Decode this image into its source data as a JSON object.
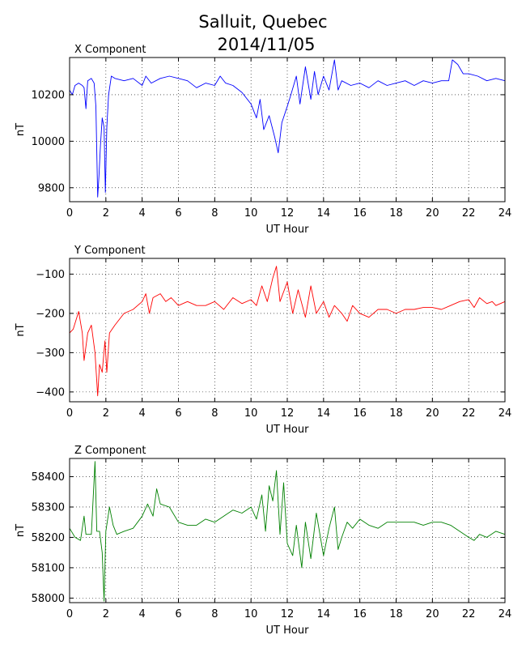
{
  "title_line1": "Salluit, Quebec",
  "title_line2": "2014/11/05",
  "chart_data": [
    {
      "type": "line",
      "title": "X Component",
      "xlabel": "UT Hour",
      "ylabel": "nT",
      "xlim": [
        0,
        24
      ],
      "ylim": [
        9740,
        10360
      ],
      "xticks": [
        0,
        2,
        4,
        6,
        8,
        10,
        12,
        14,
        16,
        18,
        20,
        22,
        24
      ],
      "yticks": [
        9800,
        10000,
        10200
      ],
      "grid": true,
      "color": "#0000ff",
      "series": [
        {
          "values": [
            [
              0,
              10220
            ],
            [
              0.15,
              10200
            ],
            [
              0.3,
              10240
            ],
            [
              0.5,
              10250
            ],
            [
              0.7,
              10240
            ],
            [
              0.8,
              10230
            ],
            [
              0.9,
              10140
            ],
            [
              1.0,
              10260
            ],
            [
              1.2,
              10270
            ],
            [
              1.35,
              10250
            ],
            [
              1.45,
              10150
            ],
            [
              1.55,
              9760
            ],
            [
              1.62,
              9850
            ],
            [
              1.7,
              9980
            ],
            [
              1.8,
              10100
            ],
            [
              1.9,
              10060
            ],
            [
              1.97,
              9780
            ],
            [
              2.05,
              10060
            ],
            [
              2.15,
              10200
            ],
            [
              2.3,
              10280
            ],
            [
              2.5,
              10270
            ],
            [
              3.0,
              10260
            ],
            [
              3.5,
              10270
            ],
            [
              4.0,
              10240
            ],
            [
              4.2,
              10280
            ],
            [
              4.5,
              10250
            ],
            [
              5.0,
              10270
            ],
            [
              5.5,
              10280
            ],
            [
              6.0,
              10270
            ],
            [
              6.5,
              10260
            ],
            [
              7.0,
              10230
            ],
            [
              7.5,
              10250
            ],
            [
              8.0,
              10240
            ],
            [
              8.3,
              10280
            ],
            [
              8.6,
              10250
            ],
            [
              9.0,
              10240
            ],
            [
              9.5,
              10210
            ],
            [
              10.0,
              10160
            ],
            [
              10.3,
              10100
            ],
            [
              10.5,
              10180
            ],
            [
              10.7,
              10050
            ],
            [
              11.0,
              10110
            ],
            [
              11.3,
              10020
            ],
            [
              11.5,
              9950
            ],
            [
              11.7,
              10080
            ],
            [
              12.0,
              10150
            ],
            [
              12.2,
              10200
            ],
            [
              12.5,
              10280
            ],
            [
              12.7,
              10160
            ],
            [
              13.0,
              10320
            ],
            [
              13.3,
              10180
            ],
            [
              13.5,
              10300
            ],
            [
              13.7,
              10200
            ],
            [
              14.0,
              10280
            ],
            [
              14.3,
              10220
            ],
            [
              14.6,
              10350
            ],
            [
              14.8,
              10220
            ],
            [
              15.0,
              10260
            ],
            [
              15.5,
              10240
            ],
            [
              16.0,
              10250
            ],
            [
              16.5,
              10230
            ],
            [
              17.0,
              10260
            ],
            [
              17.5,
              10240
            ],
            [
              18.0,
              10250
            ],
            [
              18.5,
              10260
            ],
            [
              19.0,
              10240
            ],
            [
              19.5,
              10260
            ],
            [
              20.0,
              10250
            ],
            [
              20.5,
              10260
            ],
            [
              20.9,
              10260
            ],
            [
              21.1,
              10350
            ],
            [
              21.4,
              10330
            ],
            [
              21.7,
              10290
            ],
            [
              22.0,
              10290
            ],
            [
              22.5,
              10280
            ],
            [
              23.0,
              10260
            ],
            [
              23.5,
              10270
            ],
            [
              24.0,
              10260
            ]
          ]
        }
      ]
    },
    {
      "type": "line",
      "title": "Y Component",
      "xlabel": "UT Hour",
      "ylabel": "nT",
      "xlim": [
        0,
        24
      ],
      "ylim": [
        -425,
        -60
      ],
      "xticks": [
        0,
        2,
        4,
        6,
        8,
        10,
        12,
        14,
        16,
        18,
        20,
        22,
        24
      ],
      "yticks": [
        -400,
        -300,
        -200,
        -100
      ],
      "grid": true,
      "color": "#ff0000",
      "series": [
        {
          "values": [
            [
              0,
              -250
            ],
            [
              0.2,
              -240
            ],
            [
              0.4,
              -210
            ],
            [
              0.5,
              -195
            ],
            [
              0.7,
              -250
            ],
            [
              0.8,
              -320
            ],
            [
              1.0,
              -250
            ],
            [
              1.2,
              -230
            ],
            [
              1.4,
              -300
            ],
            [
              1.55,
              -410
            ],
            [
              1.65,
              -330
            ],
            [
              1.8,
              -350
            ],
            [
              1.95,
              -270
            ],
            [
              2.05,
              -350
            ],
            [
              2.2,
              -250
            ],
            [
              2.5,
              -230
            ],
            [
              3.0,
              -200
            ],
            [
              3.5,
              -190
            ],
            [
              4.0,
              -170
            ],
            [
              4.2,
              -150
            ],
            [
              4.4,
              -200
            ],
            [
              4.6,
              -160
            ],
            [
              5.0,
              -150
            ],
            [
              5.3,
              -170
            ],
            [
              5.6,
              -160
            ],
            [
              6.0,
              -180
            ],
            [
              6.5,
              -170
            ],
            [
              7.0,
              -180
            ],
            [
              7.5,
              -180
            ],
            [
              8.0,
              -170
            ],
            [
              8.5,
              -190
            ],
            [
              9.0,
              -160
            ],
            [
              9.5,
              -175
            ],
            [
              10.0,
              -165
            ],
            [
              10.3,
              -180
            ],
            [
              10.6,
              -130
            ],
            [
              10.9,
              -170
            ],
            [
              11.2,
              -110
            ],
            [
              11.4,
              -80
            ],
            [
              11.6,
              -170
            ],
            [
              12.0,
              -120
            ],
            [
              12.3,
              -200
            ],
            [
              12.6,
              -140
            ],
            [
              13.0,
              -210
            ],
            [
              13.3,
              -130
            ],
            [
              13.6,
              -200
            ],
            [
              14.0,
              -170
            ],
            [
              14.3,
              -210
            ],
            [
              14.6,
              -180
            ],
            [
              15.0,
              -200
            ],
            [
              15.3,
              -220
            ],
            [
              15.6,
              -180
            ],
            [
              16.0,
              -200
            ],
            [
              16.5,
              -210
            ],
            [
              17.0,
              -190
            ],
            [
              17.5,
              -190
            ],
            [
              18.0,
              -200
            ],
            [
              18.5,
              -190
            ],
            [
              19.0,
              -190
            ],
            [
              19.5,
              -185
            ],
            [
              20.0,
              -185
            ],
            [
              20.5,
              -190
            ],
            [
              21.0,
              -180
            ],
            [
              21.5,
              -170
            ],
            [
              22.0,
              -165
            ],
            [
              22.3,
              -185
            ],
            [
              22.6,
              -160
            ],
            [
              23.0,
              -175
            ],
            [
              23.3,
              -170
            ],
            [
              23.5,
              -180
            ],
            [
              24.0,
              -170
            ]
          ]
        }
      ]
    },
    {
      "type": "line",
      "title": "Z Component",
      "xlabel": "UT Hour",
      "ylabel": "nT",
      "xlim": [
        0,
        24
      ],
      "ylim": [
        57985,
        58460
      ],
      "xticks": [
        0,
        2,
        4,
        6,
        8,
        10,
        12,
        14,
        16,
        18,
        20,
        22,
        24
      ],
      "yticks": [
        58000,
        58100,
        58200,
        58300,
        58400
      ],
      "grid": true,
      "color": "#008000",
      "series": [
        {
          "values": [
            [
              0,
              58230
            ],
            [
              0.3,
              58200
            ],
            [
              0.6,
              58190
            ],
            [
              0.8,
              58270
            ],
            [
              0.9,
              58210
            ],
            [
              1.2,
              58210
            ],
            [
              1.4,
              58450
            ],
            [
              1.5,
              58220
            ],
            [
              1.65,
              58220
            ],
            [
              1.8,
              58150
            ],
            [
              1.9,
              57990
            ],
            [
              2.0,
              58220
            ],
            [
              2.2,
              58300
            ],
            [
              2.4,
              58240
            ],
            [
              2.6,
              58210
            ],
            [
              3.0,
              58220
            ],
            [
              3.5,
              58230
            ],
            [
              4.0,
              58270
            ],
            [
              4.3,
              58310
            ],
            [
              4.6,
              58270
            ],
            [
              4.8,
              58360
            ],
            [
              5.0,
              58310
            ],
            [
              5.5,
              58300
            ],
            [
              6.0,
              58250
            ],
            [
              6.5,
              58240
            ],
            [
              7.0,
              58240
            ],
            [
              7.5,
              58260
            ],
            [
              8.0,
              58250
            ],
            [
              8.5,
              58270
            ],
            [
              9.0,
              58290
            ],
            [
              9.5,
              58280
            ],
            [
              10.0,
              58300
            ],
            [
              10.3,
              58260
            ],
            [
              10.6,
              58340
            ],
            [
              10.8,
              58220
            ],
            [
              11.0,
              58370
            ],
            [
              11.2,
              58320
            ],
            [
              11.4,
              58420
            ],
            [
              11.6,
              58210
            ],
            [
              11.8,
              58380
            ],
            [
              12.0,
              58180
            ],
            [
              12.3,
              58140
            ],
            [
              12.5,
              58240
            ],
            [
              12.8,
              58100
            ],
            [
              13.0,
              58250
            ],
            [
              13.3,
              58130
            ],
            [
              13.6,
              58280
            ],
            [
              14.0,
              58140
            ],
            [
              14.3,
              58230
            ],
            [
              14.6,
              58300
            ],
            [
              14.8,
              58160
            ],
            [
              15.0,
              58200
            ],
            [
              15.3,
              58250
            ],
            [
              15.6,
              58230
            ],
            [
              16.0,
              58260
            ],
            [
              16.5,
              58240
            ],
            [
              17.0,
              58230
            ],
            [
              17.5,
              58250
            ],
            [
              18.0,
              58250
            ],
            [
              18.5,
              58250
            ],
            [
              19.0,
              58250
            ],
            [
              19.5,
              58240
            ],
            [
              20.0,
              58250
            ],
            [
              20.5,
              58250
            ],
            [
              21.0,
              58240
            ],
            [
              21.5,
              58220
            ],
            [
              22.0,
              58200
            ],
            [
              22.3,
              58190
            ],
            [
              22.6,
              58210
            ],
            [
              23.0,
              58200
            ],
            [
              23.5,
              58220
            ],
            [
              24.0,
              58210
            ]
          ]
        }
      ]
    }
  ]
}
